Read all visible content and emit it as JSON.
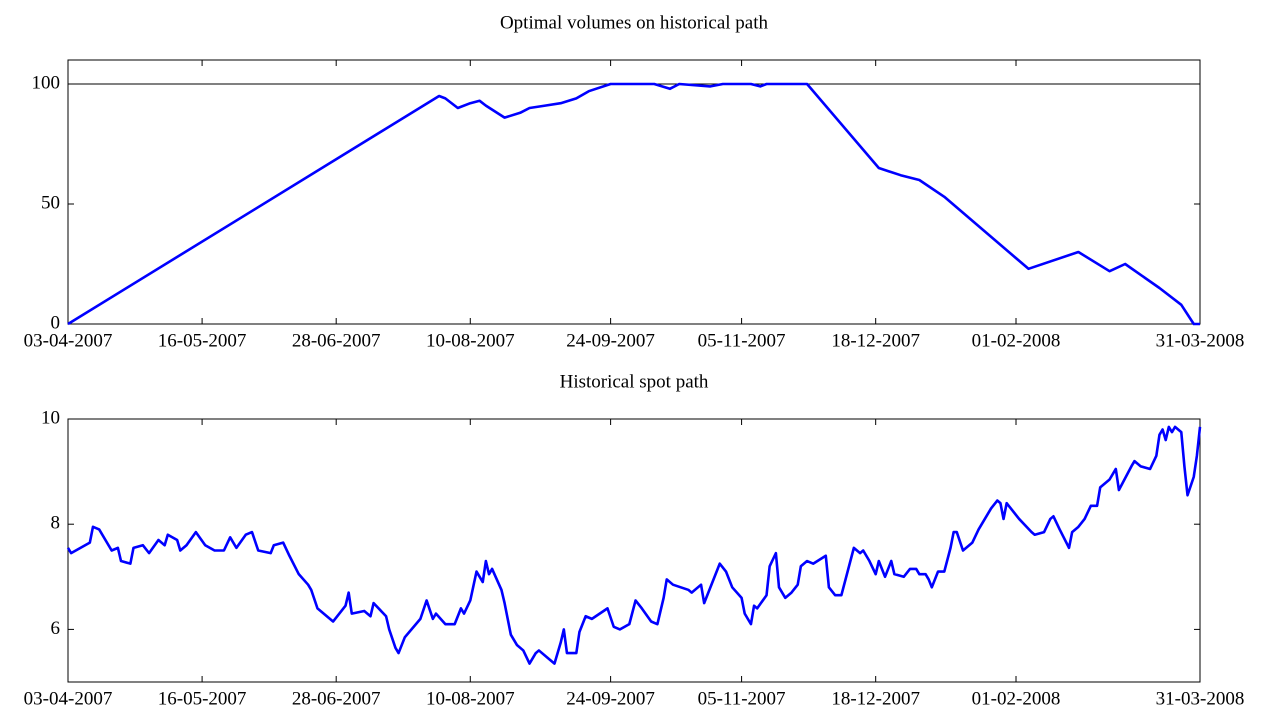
{
  "chart_data": [
    {
      "type": "line",
      "title": "Optimal volumes on historical path",
      "xlim": [
        "03-04-2007",
        "31-03-2008"
      ],
      "xticks": [
        "03-04-2007",
        "16-05-2007",
        "28-06-2007",
        "10-08-2007",
        "24-09-2007",
        "05-11-2007",
        "18-12-2007",
        "01-02-2008",
        "31-03-2008"
      ],
      "ylim": [
        0,
        110
      ],
      "yticks": [
        0,
        50,
        100
      ],
      "reference_line": 100,
      "x": [
        "03-04-2007",
        "31-07-2007",
        "02-08-2007",
        "06-08-2007",
        "10-08-2007",
        "13-08-2007",
        "15-08-2007",
        "21-08-2007",
        "26-08-2007",
        "29-08-2007",
        "03-09-2007",
        "08-09-2007",
        "13-09-2007",
        "17-09-2007",
        "24-09-2007",
        "08-10-2007",
        "13-10-2007",
        "16-10-2007",
        "26-10-2007",
        "30-10-2007",
        "08-11-2007",
        "11-11-2007",
        "13-11-2007",
        "26-11-2007",
        "19-12-2007",
        "26-12-2007",
        "01-01-2008",
        "09-01-2008",
        "05-02-2008",
        "21-02-2008",
        "02-03-2008",
        "07-03-2008",
        "18-03-2008",
        "25-03-2008",
        "29-03-2008",
        "31-03-2008"
      ],
      "series": [
        {
          "color": "#0000ff",
          "values": [
            0,
            95,
            94,
            90,
            92,
            93,
            91,
            86,
            88,
            90,
            91,
            92,
            94,
            97,
            100,
            100,
            98,
            100,
            99,
            100,
            100,
            99,
            100,
            100,
            65,
            62,
            60,
            53,
            23,
            30,
            22,
            25,
            15,
            8,
            0,
            0
          ]
        }
      ]
    },
    {
      "type": "line",
      "title": "Historical spot path",
      "xlim": [
        "03-04-2007",
        "31-03-2008"
      ],
      "xticks": [
        "03-04-2007",
        "16-05-2007",
        "28-06-2007",
        "10-08-2007",
        "24-09-2007",
        "05-11-2007",
        "18-12-2007",
        "01-02-2008",
        "31-03-2008"
      ],
      "ylim": [
        5,
        10
      ],
      "yticks": [
        6,
        8,
        10
      ],
      "x": [
        "03-04-2007",
        "04-04-2007",
        "07-04-2007",
        "10-04-2007",
        "11-04-2007",
        "13-04-2007",
        "17-04-2007",
        "19-04-2007",
        "20-04-2007",
        "23-04-2007",
        "24-04-2007",
        "27-04-2007",
        "29-04-2007",
        "02-05-2007",
        "04-05-2007",
        "05-05-2007",
        "08-05-2007",
        "09-05-2007",
        "11-05-2007",
        "14-05-2007",
        "17-05-2007",
        "20-05-2007",
        "23-05-2007",
        "25-05-2007",
        "27-05-2007",
        "30-05-2007",
        "01-06-2007",
        "03-06-2007",
        "07-06-2007",
        "08-06-2007",
        "11-06-2007",
        "13-06-2007",
        "16-06-2007",
        "19-06-2007",
        "20-06-2007",
        "22-06-2007",
        "25-06-2007",
        "27-06-2007",
        "01-07-2007",
        "02-07-2007",
        "03-07-2007",
        "07-07-2007",
        "09-07-2007",
        "10-07-2007",
        "14-07-2007",
        "15-07-2007",
        "17-07-2007",
        "18-07-2007",
        "20-07-2007",
        "25-07-2007",
        "27-07-2007",
        "29-07-2007",
        "30-07-2007",
        "02-08-2007",
        "05-08-2007",
        "07-08-2007",
        "08-08-2007",
        "10-08-2007",
        "12-08-2007",
        "14-08-2007",
        "15-08-2007",
        "16-08-2007",
        "17-08-2007",
        "20-08-2007",
        "21-08-2007",
        "23-08-2007",
        "25-08-2007",
        "27-08-2007",
        "29-08-2007",
        "31-08-2007",
        "01-09-2007",
        "04-09-2007",
        "06-09-2007",
        "08-09-2007",
        "09-09-2007",
        "10-09-2007",
        "13-09-2007",
        "14-09-2007",
        "16-09-2007",
        "18-09-2007",
        "23-09-2007",
        "25-09-2007",
        "27-09-2007",
        "30-09-2007",
        "02-10-2007",
        "04-10-2007",
        "07-10-2007",
        "09-10-2007",
        "11-10-2007",
        "12-10-2007",
        "14-10-2007",
        "19-10-2007",
        "20-10-2007",
        "23-10-2007",
        "24-10-2007",
        "29-10-2007",
        "31-10-2007",
        "02-11-2007",
        "05-11-2007",
        "06-11-2007",
        "08-11-2007",
        "09-11-2007",
        "10-11-2007",
        "13-11-2007",
        "14-11-2007",
        "16-11-2007",
        "17-11-2007",
        "19-11-2007",
        "21-11-2007",
        "23-11-2007",
        "24-11-2007",
        "26-11-2007",
        "28-11-2007",
        "02-12-2007",
        "03-12-2007",
        "05-12-2007",
        "07-12-2007",
        "11-12-2007",
        "13-12-2007",
        "14-12-2007",
        "16-12-2007",
        "18-12-2007",
        "19-12-2007",
        "21-12-2007",
        "23-12-2007",
        "24-12-2007",
        "27-12-2007",
        "29-12-2007",
        "31-12-2007",
        "01-01-2008",
        "03-01-2008",
        "04-01-2008",
        "05-01-2008",
        "07-01-2008",
        "09-01-2008",
        "11-01-2008",
        "12-01-2008",
        "13-01-2008",
        "15-01-2008",
        "17-01-2008",
        "18-01-2008",
        "20-01-2008",
        "22-01-2008",
        "24-01-2008",
        "26-01-2008",
        "27-01-2008",
        "28-01-2008",
        "29-01-2008",
        "02-02-2008",
        "06-02-2008",
        "07-02-2008",
        "10-02-2008",
        "12-02-2008",
        "13-02-2008",
        "15-02-2008",
        "18-02-2008",
        "19-02-2008",
        "21-02-2008",
        "23-02-2008",
        "25-02-2008",
        "27-02-2008",
        "28-02-2008",
        "02-03-2008",
        "04-03-2008",
        "05-03-2008",
        "09-03-2008",
        "10-03-2008",
        "12-03-2008",
        "15-03-2008",
        "17-03-2008",
        "18-03-2008",
        "19-03-2008",
        "20-03-2008",
        "21-03-2008",
        "22-03-2008",
        "23-03-2008",
        "25-03-2008",
        "26-03-2008",
        "27-03-2008",
        "29-03-2008",
        "30-03-2008",
        "31-03-2008"
      ],
      "series": [
        {
          "color": "#0000ff",
          "values": [
            7.55,
            7.45,
            7.55,
            7.65,
            7.95,
            7.9,
            7.5,
            7.55,
            7.3,
            7.25,
            7.55,
            7.6,
            7.45,
            7.7,
            7.6,
            7.8,
            7.7,
            7.5,
            7.6,
            7.85,
            7.6,
            7.5,
            7.5,
            7.75,
            7.55,
            7.8,
            7.85,
            7.5,
            7.45,
            7.6,
            7.65,
            7.4,
            7.05,
            6.85,
            6.75,
            6.4,
            6.25,
            6.15,
            6.45,
            6.7,
            6.3,
            6.35,
            6.25,
            6.5,
            6.25,
            6.0,
            5.65,
            5.55,
            5.85,
            6.2,
            6.55,
            6.2,
            6.3,
            6.1,
            6.1,
            6.4,
            6.3,
            6.55,
            7.1,
            6.9,
            7.3,
            7.05,
            7.15,
            6.75,
            6.5,
            5.9,
            5.7,
            5.6,
            5.35,
            5.55,
            5.6,
            5.45,
            5.35,
            5.75,
            6.0,
            5.55,
            5.55,
            5.95,
            6.25,
            6.2,
            6.4,
            6.05,
            6.0,
            6.1,
            6.55,
            6.4,
            6.15,
            6.1,
            6.6,
            6.95,
            6.85,
            6.75,
            6.7,
            6.85,
            6.5,
            7.25,
            7.1,
            6.8,
            6.6,
            6.3,
            6.1,
            6.45,
            6.4,
            6.65,
            7.2,
            7.45,
            6.8,
            6.6,
            6.7,
            6.85,
            7.2,
            7.3,
            7.25,
            7.4,
            6.8,
            6.65,
            6.65,
            7.55,
            7.45,
            7.5,
            7.3,
            7.05,
            7.3,
            7.0,
            7.3,
            7.05,
            7.0,
            7.15,
            7.15,
            7.05,
            7.05,
            6.95,
            6.8,
            7.1,
            7.1,
            7.55,
            7.85,
            7.85,
            7.5,
            7.6,
            7.65,
            7.9,
            8.1,
            8.3,
            8.45,
            8.4,
            8.1,
            8.4,
            8.1,
            7.85,
            7.8,
            7.85,
            8.1,
            8.15,
            7.9,
            7.55,
            7.85,
            7.95,
            8.1,
            8.35,
            8.35,
            8.7,
            8.85,
            9.05,
            8.65,
            9.1,
            9.2,
            9.1,
            9.05,
            9.3,
            9.7,
            9.8,
            9.6,
            9.85,
            9.75,
            9.85,
            9.75,
            9.1,
            8.55,
            8.9,
            9.3,
            9.85
          ]
        }
      ]
    }
  ]
}
